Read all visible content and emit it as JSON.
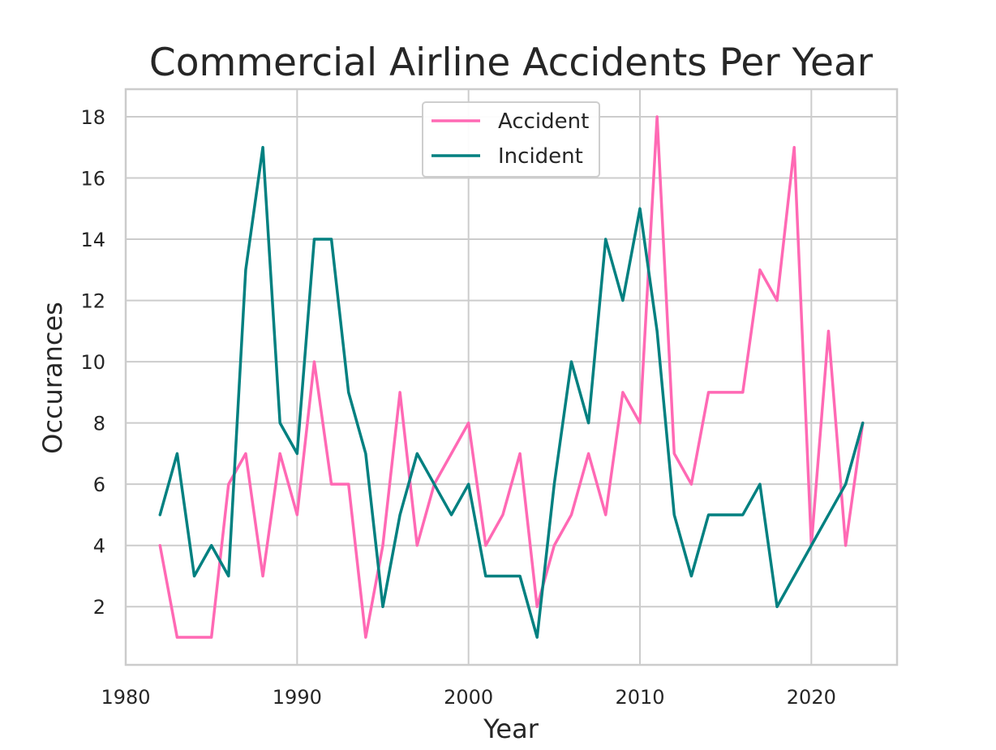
{
  "chart_data": {
    "type": "line",
    "title": "Commercial Airline Accidents Per Year",
    "xlabel": "Year",
    "ylabel": "Occurances",
    "xlim": [
      1980,
      2025
    ],
    "ylim": [
      0.1,
      18.9
    ],
    "xticks": [
      1980,
      1990,
      2000,
      2010,
      2020
    ],
    "yticks": [
      2,
      4,
      6,
      8,
      10,
      12,
      14,
      16,
      18
    ],
    "grid": true,
    "legend": "top-center",
    "x": [
      1982,
      1983,
      1984,
      1985,
      1986,
      1987,
      1988,
      1989,
      1990,
      1991,
      1992,
      1993,
      1994,
      1995,
      1996,
      1997,
      1998,
      1999,
      2000,
      2001,
      2002,
      2003,
      2004,
      2005,
      2006,
      2007,
      2008,
      2009,
      2010,
      2011,
      2012,
      2013,
      2014,
      2015,
      2016,
      2017,
      2018,
      2019,
      2020,
      2021,
      2022,
      2023
    ],
    "series": [
      {
        "name": "Accident",
        "color": "#ff69b4",
        "values": [
          4,
          1,
          1,
          1,
          6,
          7,
          3,
          7,
          5,
          10,
          6,
          6,
          1,
          4,
          9,
          4,
          6,
          7,
          8,
          4,
          5,
          7,
          2,
          4,
          5,
          7,
          5,
          9,
          8,
          18,
          7,
          6,
          9,
          9,
          9,
          13,
          12,
          17,
          4,
          11,
          4,
          8
        ]
      },
      {
        "name": "Incident",
        "color": "#008080",
        "values": [
          5,
          7,
          3,
          4,
          3,
          13,
          17,
          8,
          7,
          14,
          14,
          9,
          7,
          2,
          5,
          7,
          6,
          5,
          6,
          3,
          3,
          3,
          1,
          6,
          10,
          8,
          14,
          12,
          15,
          11,
          5,
          3,
          5,
          5,
          5,
          6,
          2,
          3,
          4,
          5,
          6,
          8
        ]
      }
    ]
  },
  "colors": {
    "grid": "#cccccc",
    "axis_text": "#262626",
    "frame": "#cccccc"
  }
}
